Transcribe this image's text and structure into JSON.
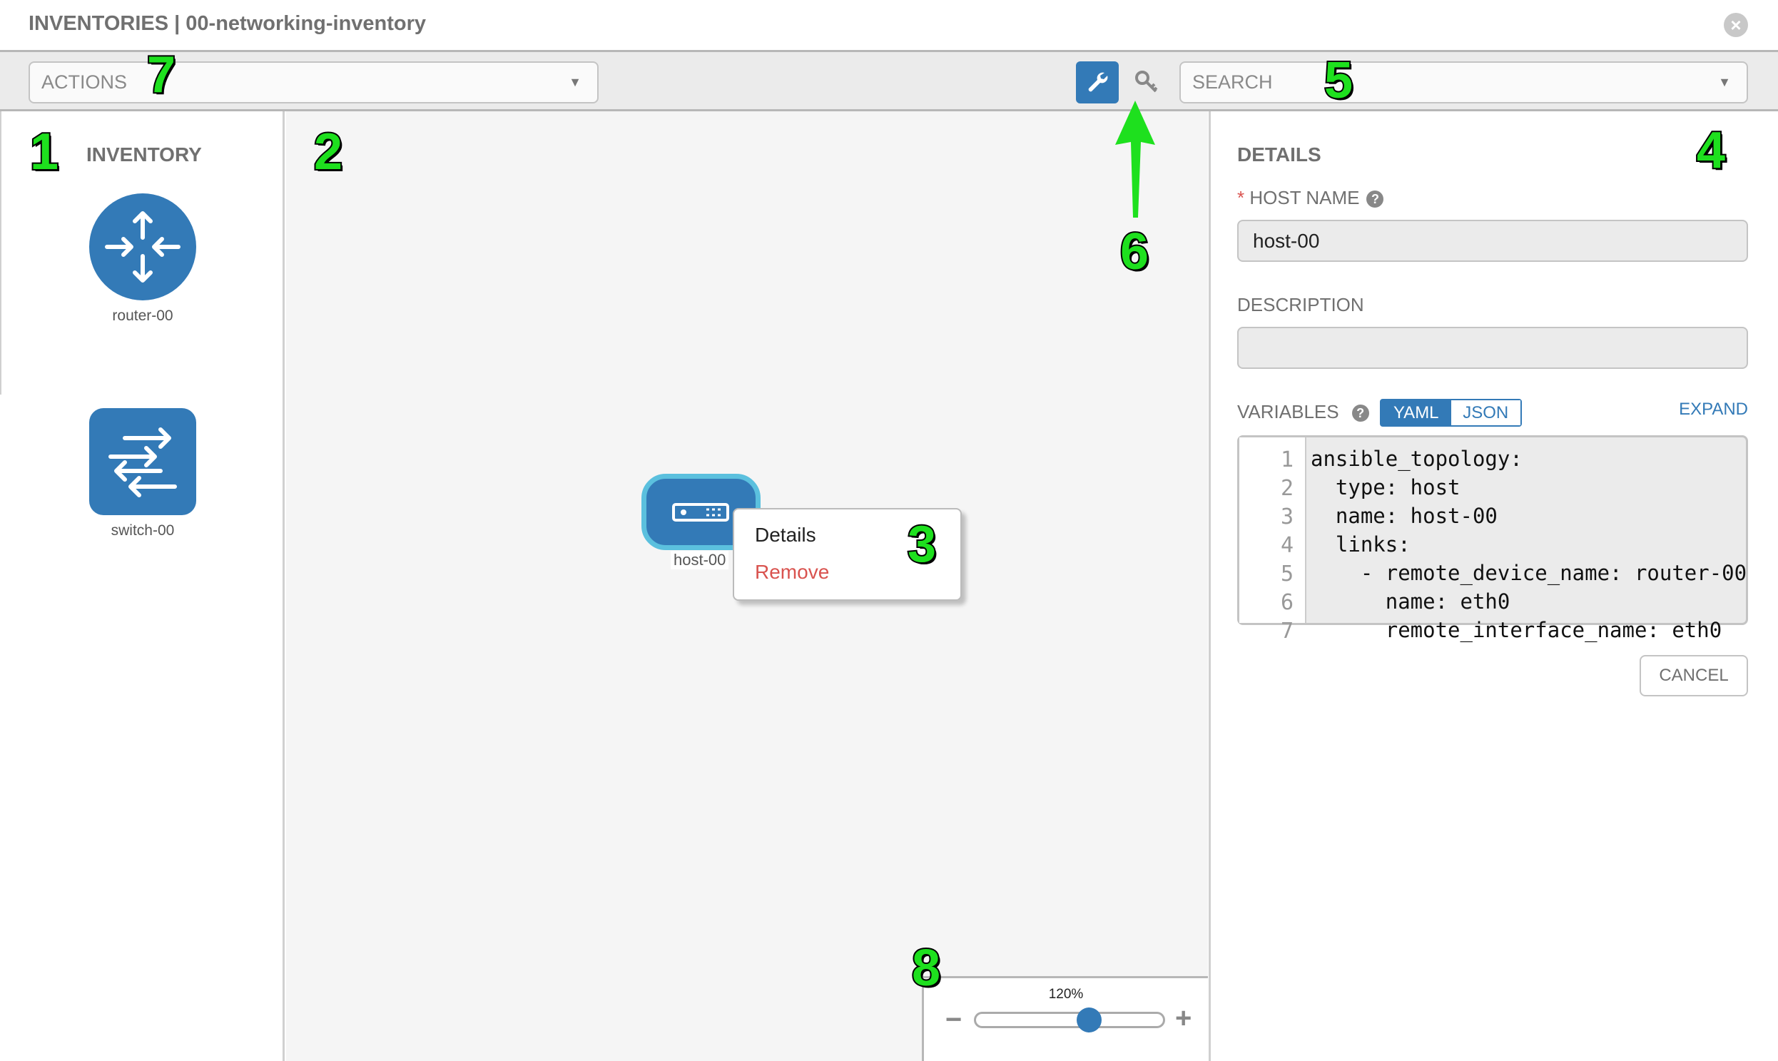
{
  "header": {
    "title": "INVENTORIES | 00-networking-inventory",
    "close_icon": "close-circle-icon"
  },
  "toolbar": {
    "actions_placeholder": "ACTIONS",
    "search_placeholder": "SEARCH",
    "wrench_icon": "wrench-icon",
    "key_icon": "key-icon",
    "accent": "#337ab7"
  },
  "palette": {
    "title": "INVENTORY",
    "items": [
      {
        "label": "router-00",
        "icon": "router-icon"
      },
      {
        "label": "switch-00",
        "icon": "switch-icon"
      }
    ]
  },
  "canvas": {
    "node": {
      "label": "host-00",
      "icon": "host-server-icon"
    },
    "context_menu": {
      "details": "Details",
      "remove": "Remove"
    },
    "zoom": {
      "value": "120%",
      "slider_fraction": 0.6
    }
  },
  "details": {
    "title": "DETAILS",
    "required_mark": "*",
    "host_name_label": "HOST NAME",
    "host_name_value": "host-00",
    "description_label": "DESCRIPTION",
    "description_value": "",
    "variables_label": "VARIABLES",
    "yaml": "YAML",
    "json": "JSON",
    "expand": "EXPAND",
    "cancel": "CANCEL",
    "code_lines": [
      "ansible_topology:",
      "  type: host",
      "  name: host-00",
      "  links:",
      "    - remote_device_name: router-00",
      "      name: eth0",
      "      remote_interface_name: eth0"
    ],
    "line_numbers": [
      "1",
      "2",
      "3",
      "4",
      "5",
      "6",
      "7"
    ]
  },
  "annotations": [
    "1",
    "2",
    "3",
    "4",
    "5",
    "6",
    "7",
    "8"
  ]
}
